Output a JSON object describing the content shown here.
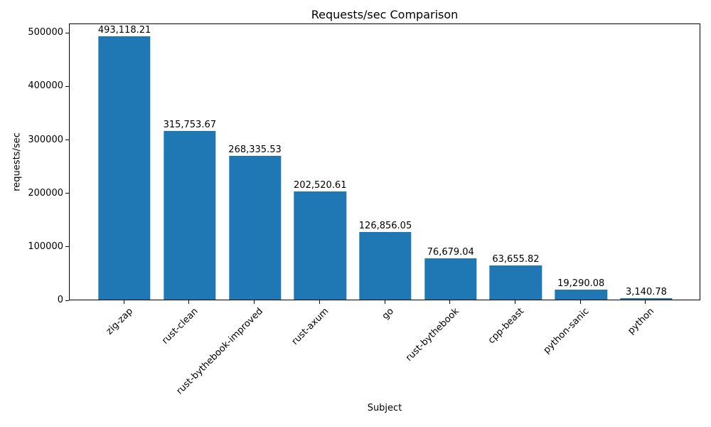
{
  "chart_data": {
    "type": "bar",
    "title": "Requests/sec Comparison",
    "xlabel": "Subject",
    "ylabel": "requests/sec",
    "categories": [
      "zig-zap",
      "rust-clean",
      "rust-bythebook-improved",
      "rust-axum",
      "go",
      "rust-bythebook",
      "cpp-beast",
      "python-sanic",
      "python"
    ],
    "values": [
      493118.21,
      315753.67,
      268335.53,
      202520.61,
      126856.05,
      76679.04,
      63655.82,
      19290.08,
      3140.78
    ],
    "value_labels": [
      "493,118.21",
      "315,753.67",
      "268,335.53",
      "202,520.61",
      "126,856.05",
      "76,679.04",
      "63,655.82",
      "19,290.08",
      "3,140.78"
    ],
    "yticks": [
      0,
      100000,
      200000,
      300000,
      400000,
      500000
    ],
    "ytick_labels": [
      "0",
      "100000",
      "200000",
      "300000",
      "400000",
      "500000"
    ],
    "ylim": [
      0,
      517774
    ],
    "bar_color": "#1f77b4",
    "text_color": "#000000",
    "background_color": "#ffffff",
    "grid": false,
    "legend": null
  }
}
